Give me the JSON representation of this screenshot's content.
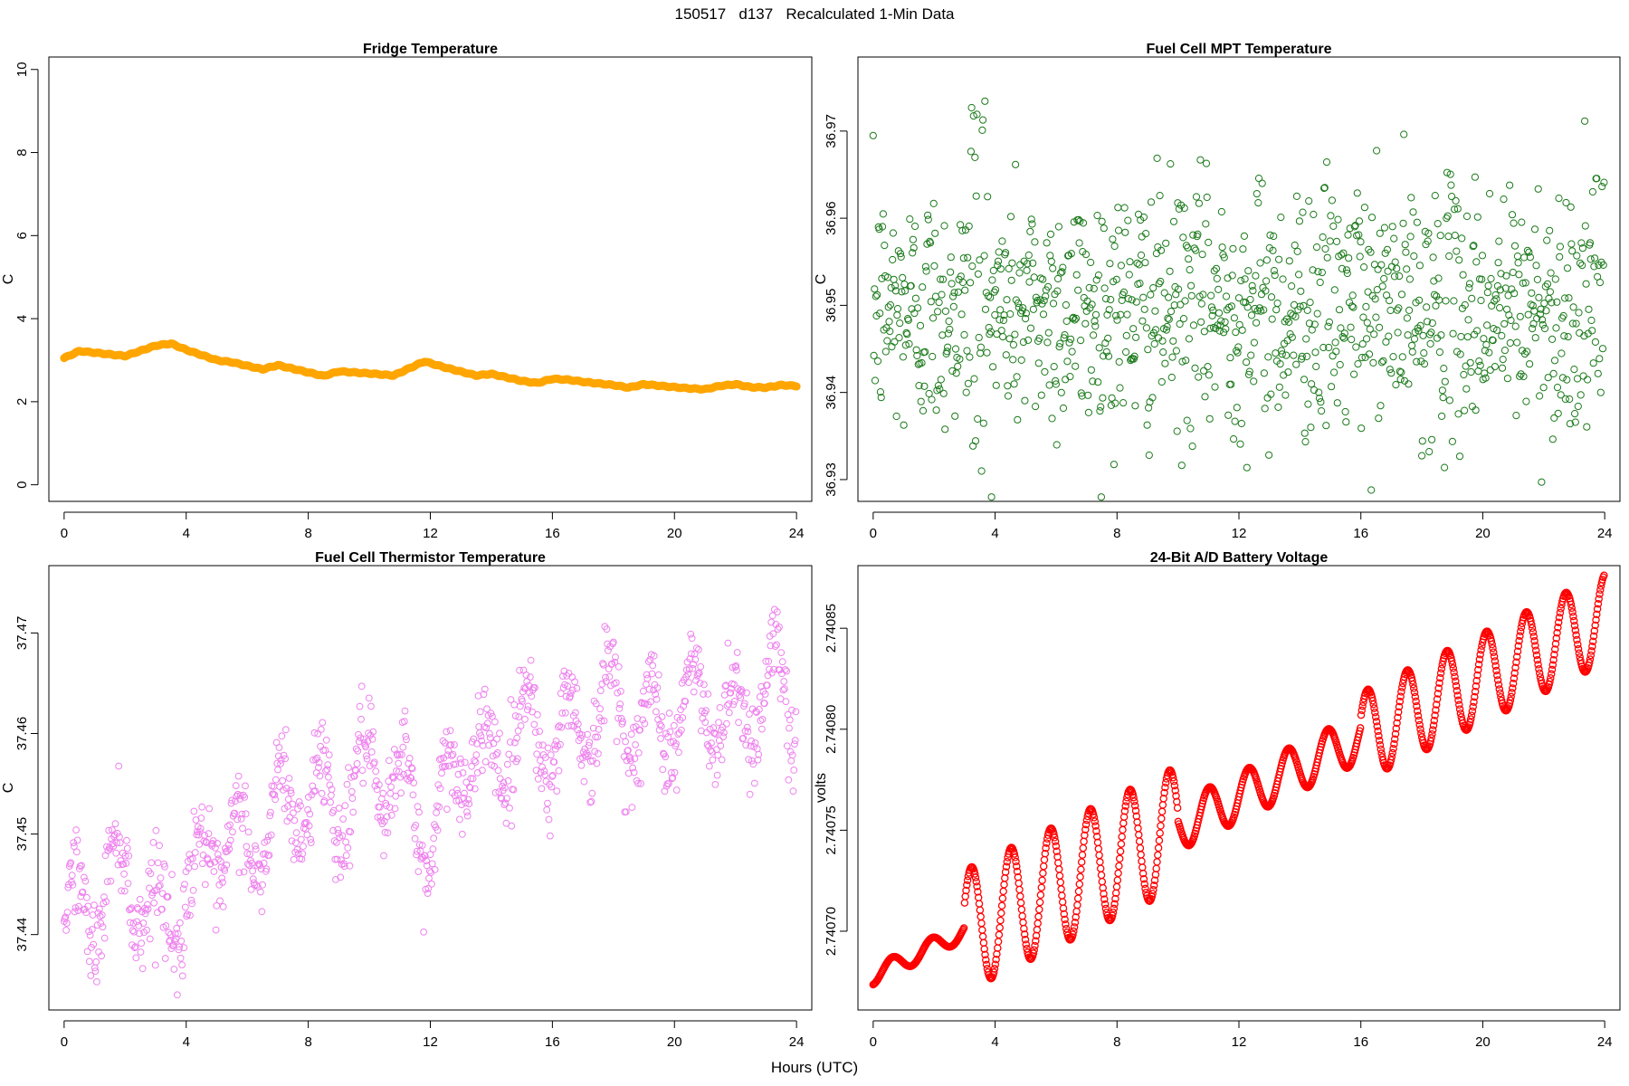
{
  "page_title": "150517   d137   Recalculated 1-Min Data",
  "shared_xlabel": "Hours (UTC)",
  "chart_data": [
    {
      "type": "line",
      "title": "Fridge Temperature",
      "xlabel": "Hours (UTC)",
      "ylabel": "C",
      "xlim": [
        -0.5,
        24.5
      ],
      "ylim": [
        -0.4,
        10.3
      ],
      "xticks": [
        0,
        4,
        8,
        12,
        16,
        20,
        24
      ],
      "yticks": [
        0,
        2,
        4,
        6,
        8,
        10
      ],
      "ytick_labels": [
        "0",
        "2",
        "4",
        "6",
        "8",
        "10"
      ],
      "color": "#FFA500",
      "x": [
        0,
        0.5,
        1,
        2,
        3,
        3.5,
        4,
        5,
        5.5,
        6.5,
        7,
        8.5,
        9,
        10,
        10.8,
        11.8,
        12.5,
        13.5,
        14,
        15,
        15.5,
        16,
        16.5,
        17,
        18,
        18.5,
        19,
        20,
        20.5,
        21,
        21.5,
        22,
        22.5,
        23,
        23.5,
        24
      ],
      "y": [
        3.05,
        3.22,
        3.18,
        3.1,
        3.35,
        3.4,
        3.25,
        3.0,
        2.95,
        2.78,
        2.88,
        2.62,
        2.73,
        2.68,
        2.63,
        2.97,
        2.82,
        2.63,
        2.67,
        2.5,
        2.45,
        2.55,
        2.53,
        2.48,
        2.4,
        2.34,
        2.42,
        2.35,
        2.32,
        2.3,
        2.38,
        2.42,
        2.35,
        2.34,
        2.4,
        2.38
      ]
    },
    {
      "type": "scatter",
      "title": "Fuel Cell MPT Temperature",
      "xlabel": "Hours (UTC)",
      "ylabel": "C",
      "xlim": [
        -0.5,
        24.5
      ],
      "ylim": [
        36.9275,
        36.9785
      ],
      "xticks": [
        0,
        4,
        8,
        12,
        16,
        20,
        24
      ],
      "yticks": [
        36.93,
        36.94,
        36.95,
        36.96,
        36.97
      ],
      "ytick_labels": [
        "36.93",
        "36.94",
        "36.95",
        "36.96",
        "36.97"
      ],
      "color": "#1B7A1B",
      "n_points": 1440,
      "mean": 36.9495,
      "spread_sd": 0.0072,
      "observed_range": [
        36.928,
        36.9775
      ]
    },
    {
      "type": "scatter",
      "title": "Fuel Cell Thermistor Temperature",
      "xlabel": "Hours (UTC)",
      "ylabel": "C",
      "xlim": [
        -0.5,
        24.5
      ],
      "ylim": [
        37.4325,
        37.4767
      ],
      "xticks": [
        0,
        4,
        8,
        12,
        16,
        20,
        24
      ],
      "yticks": [
        37.44,
        37.45,
        37.46,
        37.47
      ],
      "ytick_labels": [
        "37.44",
        "37.45",
        "37.46",
        "37.47"
      ],
      "color": "#EE82EE",
      "n_points": 1440,
      "trend_x": [
        0,
        1,
        2,
        3,
        4,
        5,
        6,
        7,
        8,
        9,
        10,
        11,
        12,
        13,
        14,
        15,
        16,
        17,
        18,
        19,
        20,
        21,
        22,
        23,
        24
      ],
      "trend_y": [
        37.442,
        37.443,
        37.447,
        37.441,
        37.444,
        37.449,
        37.448,
        37.452,
        37.454,
        37.453,
        37.456,
        37.455,
        37.449,
        37.458,
        37.457,
        37.461,
        37.459,
        37.461,
        37.463,
        37.46,
        37.462,
        37.463,
        37.461,
        37.465,
        37.463
      ],
      "observed_range": [
        37.434,
        37.4745
      ]
    },
    {
      "type": "line",
      "title": "24-Bit A/D Battery Voltage",
      "xlabel": "Hours (UTC)",
      "ylabel": "volts",
      "xlim": [
        -0.5,
        24.5
      ],
      "ylim": [
        2.740661,
        2.740881
      ],
      "xticks": [
        0,
        4,
        8,
        12,
        16,
        20,
        24
      ],
      "yticks": [
        2.7407,
        2.74075,
        2.7408,
        2.74085
      ],
      "ytick_labels": [
        "2.74070",
        "2.74075",
        "2.74080",
        "2.74085"
      ],
      "color": "#FF0000",
      "n_points": 1440,
      "trend_start": 2.740678,
      "trend_end": 2.740855,
      "oscillation_period_hours": 1.3,
      "observed_range": [
        2.740665,
        2.740876
      ]
    }
  ]
}
